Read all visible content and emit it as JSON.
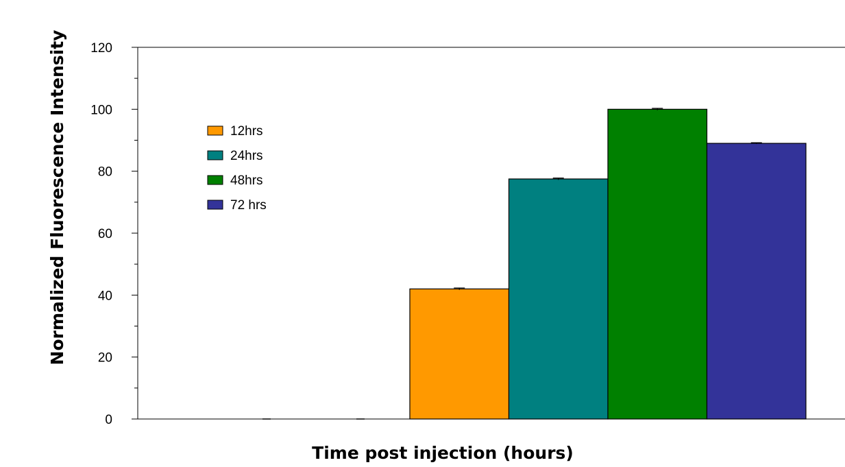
{
  "chart_data": {
    "type": "bar",
    "title": "",
    "xlabel": "Time post injection (hours)",
    "ylabel": "Normalized Fluorescence Intensity",
    "ylim": [
      0,
      120
    ],
    "yticks": [
      "0",
      "20",
      "40",
      "60",
      "80",
      "100",
      "120"
    ],
    "grid": false,
    "legend_position": "upper-left",
    "series": [
      {
        "name": "12hrs",
        "color": "#FF9900",
        "value": 42,
        "error": 0.3
      },
      {
        "name": "24hrs",
        "color": "#008080",
        "value": 77.5,
        "error": 0.3
      },
      {
        "name": "48hrs",
        "color": "#008000",
        "value": 100,
        "error": 0.3
      },
      {
        "name": "72 hrs",
        "color": "#333399",
        "value": 89,
        "error": 0.2
      }
    ],
    "empty_error_markers": [
      0,
      0
    ]
  }
}
